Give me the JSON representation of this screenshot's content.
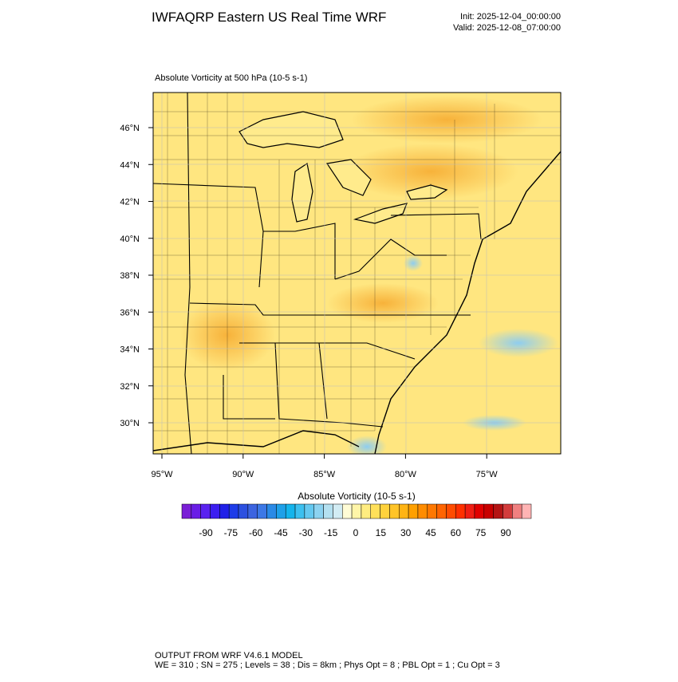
{
  "header": {
    "title": "IWFAQRP Eastern US Real Time WRF",
    "init": "Init: 2025-12-04_00:00:00",
    "valid": "Valid: 2025-12-08_07:00:00"
  },
  "map": {
    "subtitle": "Absolute Vorticity at 500 hPa   (10-5 s-1)",
    "lat_labels": [
      "46°N",
      "44°N",
      "42°N",
      "40°N",
      "38°N",
      "36°N",
      "34°N",
      "32°N",
      "30°N"
    ],
    "lon_labels": [
      "95°W",
      "90°W",
      "85°W",
      "80°W",
      "75°W"
    ]
  },
  "colorbar": {
    "title": "Absolute Vorticity  (10-5 s-1)",
    "labels": [
      -90,
      -75,
      -60,
      -45,
      -30,
      -15,
      0,
      15,
      30,
      45,
      60,
      75,
      90
    ],
    "colors": [
      "#7a1fd6",
      "#6a1ee6",
      "#5a22f0",
      "#3c1ef0",
      "#2020e8",
      "#1e3ce8",
      "#2c50e0",
      "#3c64e0",
      "#3c78e6",
      "#2a8ae6",
      "#1ea0e8",
      "#14b4ec",
      "#3cc0f0",
      "#64c8f0",
      "#8cd2f0",
      "#b4e0f0",
      "#d2ecf4",
      "#fffcd6",
      "#fff5a8",
      "#ffec80",
      "#ffe05a",
      "#ffd23c",
      "#ffc428",
      "#ffb414",
      "#ffa000",
      "#ff8c00",
      "#ff7800",
      "#ff6400",
      "#ff4c00",
      "#ff3000",
      "#f01e14",
      "#e00000",
      "#c80000",
      "#b41414",
      "#d23c3c",
      "#f08080",
      "#ffb4b4"
    ]
  },
  "footer": {
    "line1": "OUTPUT FROM WRF V4.6.1 MODEL",
    "line2": "WE = 310 ; SN = 275 ; Levels = 38 ; Dis = 8km ; Phys Opt = 8 ; PBL Opt = 1 ; Cu Opt = 3"
  }
}
